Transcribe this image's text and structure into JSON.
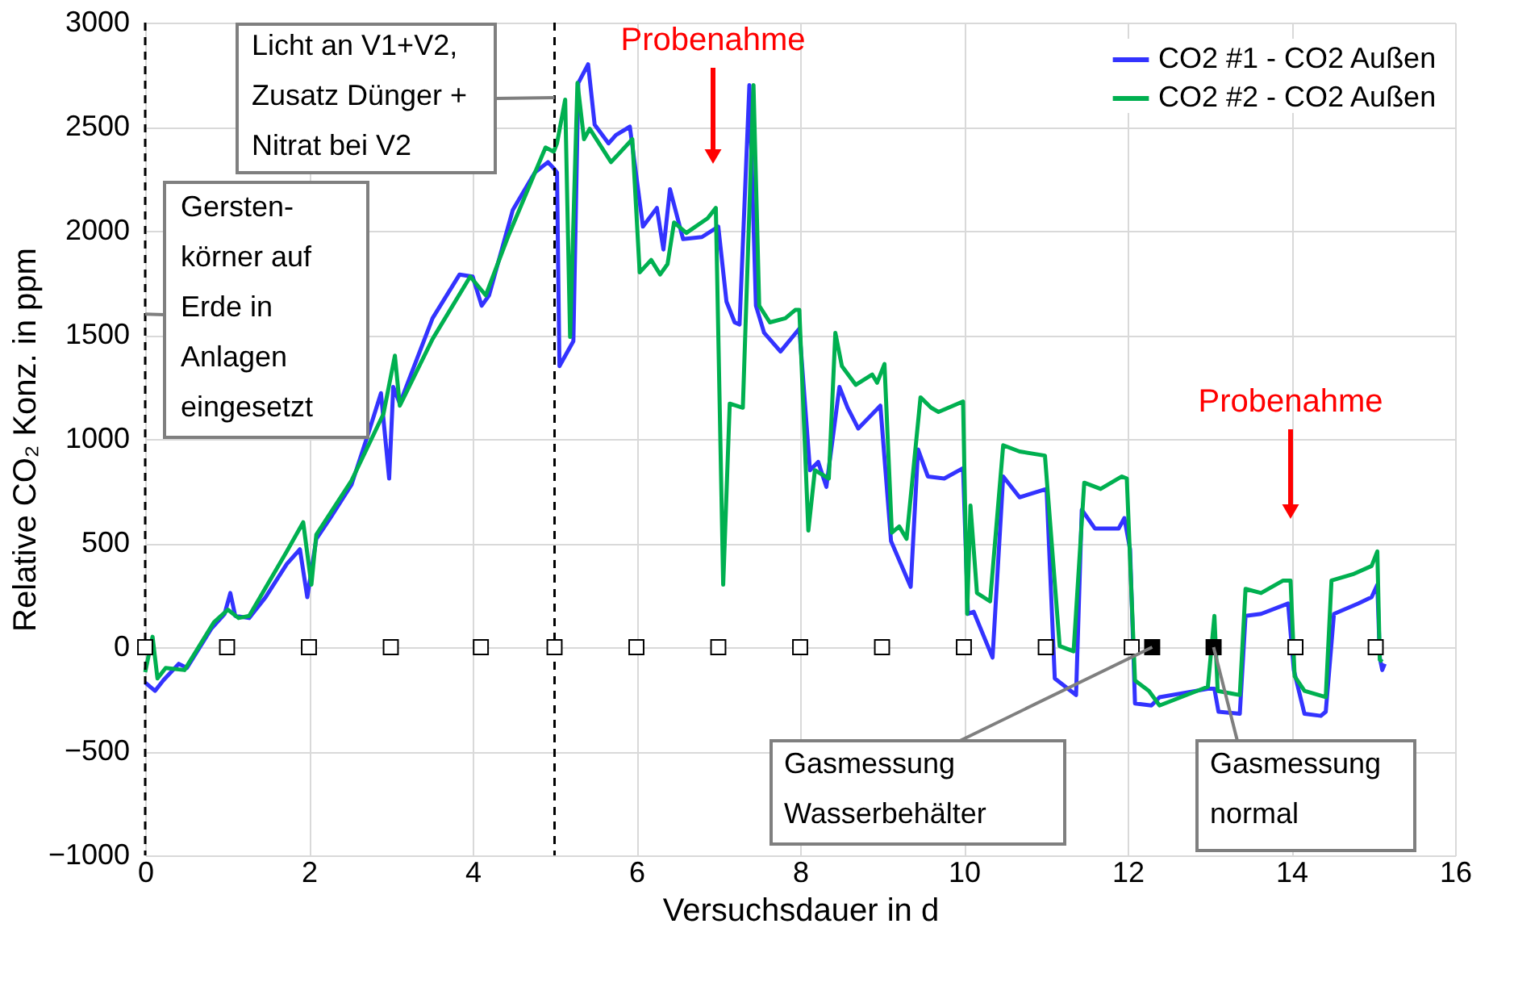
{
  "chart_data": {
    "type": "line",
    "xlabel": "Versuchsdauer in d",
    "ylabel": "Relative CO₂ Konz. in ppm",
    "xlim": [
      0,
      16
    ],
    "xticks": [
      0,
      2,
      4,
      6,
      8,
      10,
      12,
      14,
      16
    ],
    "ylim": [
      -1000,
      3000
    ],
    "yticks": [
      -1000,
      -500,
      0,
      500,
      1000,
      1500,
      2000,
      2500,
      3000
    ],
    "grid": true,
    "legend": "top right",
    "line_style": "solid",
    "series": [
      {
        "name": "CO2 #1 - CO2 Außen",
        "color": "#3333ff",
        "x": [
          0,
          0.12,
          0.22,
          0.41,
          0.51,
          0.81,
          0.97,
          1.04,
          1.1,
          1.27,
          1.47,
          1.73,
          1.89,
          1.98,
          2.09,
          2.26,
          2.52,
          2.72,
          2.88,
          2.98,
          3.03,
          3.11,
          3.51,
          3.84,
          4.0,
          4.11,
          4.2,
          4.49,
          4.76,
          4.92,
          4.99,
          5.03,
          5.06,
          5.23,
          5.29,
          5.41,
          5.49,
          5.66,
          5.75,
          5.92,
          6.08,
          6.25,
          6.33,
          6.41,
          6.57,
          6.8,
          7.0,
          7.1,
          7.2,
          7.26,
          7.38,
          7.46,
          7.56,
          7.76,
          7.99,
          8.12,
          8.22,
          8.32,
          8.48,
          8.58,
          8.71,
          8.98,
          9.11,
          9.35,
          9.44,
          9.56,
          9.76,
          9.99,
          10.05,
          10.12,
          10.35,
          10.48,
          10.68,
          11.01,
          11.11,
          11.37,
          11.44,
          11.6,
          11.89,
          11.96,
          12.03,
          12.09,
          12.29,
          12.39,
          12.98,
          13.06,
          13.11,
          13.37,
          13.44,
          13.63,
          13.96,
          14.03,
          14.16,
          14.36,
          14.42,
          14.52,
          14.82,
          14.98,
          15.05,
          15.08,
          15.11,
          15.14
        ],
        "values": [
          -170,
          -210,
          -160,
          -80,
          -100,
          90,
          160,
          260,
          150,
          140,
          240,
          400,
          470,
          240,
          520,
          620,
          780,
          1020,
          1220,
          810,
          1250,
          1170,
          1580,
          1790,
          1780,
          1640,
          1690,
          2100,
          2280,
          2330,
          2300,
          2280,
          1350,
          1470,
          2710,
          2800,
          2510,
          2420,
          2460,
          2500,
          2020,
          2110,
          1910,
          2200,
          1960,
          1970,
          2020,
          1660,
          1560,
          1550,
          2700,
          1640,
          1510,
          1420,
          1530,
          850,
          890,
          770,
          1250,
          1150,
          1050,
          1160,
          510,
          290,
          950,
          820,
          810,
          860,
          160,
          170,
          -50,
          820,
          720,
          760,
          -150,
          -230,
          660,
          570,
          570,
          620,
          470,
          -270,
          -280,
          -240,
          -200,
          -200,
          -310,
          -320,
          150,
          160,
          210,
          -110,
          -320,
          -330,
          -310,
          160,
          210,
          240,
          300,
          -50,
          -110,
          -80
        ]
      },
      {
        "name": "CO2 #2 - CO2 Außen",
        "color": "#00b050",
        "x": [
          0,
          0.09,
          0.15,
          0.25,
          0.48,
          0.84,
          1.01,
          1.14,
          1.27,
          1.73,
          1.93,
          2.03,
          2.09,
          2.52,
          2.91,
          3.05,
          3.11,
          3.51,
          3.97,
          4.16,
          4.43,
          4.89,
          4.99,
          5.03,
          5.13,
          5.19,
          5.28,
          5.36,
          5.43,
          5.69,
          5.95,
          6.04,
          6.18,
          6.29,
          6.38,
          6.46,
          6.61,
          6.87,
          6.97,
          7.06,
          7.14,
          7.3,
          7.43,
          7.5,
          7.63,
          7.82,
          7.94,
          7.99,
          8.1,
          8.18,
          8.35,
          8.43,
          8.51,
          8.68,
          8.88,
          8.94,
          9.03,
          9.12,
          9.21,
          9.3,
          9.47,
          9.6,
          9.69,
          9.99,
          10.04,
          10.08,
          10.16,
          10.32,
          10.48,
          10.68,
          10.99,
          11.17,
          11.34,
          11.47,
          11.67,
          11.93,
          11.99,
          12.09,
          12.26,
          12.39,
          12.98,
          13.06,
          13.1,
          13.37,
          13.44,
          13.63,
          13.9,
          13.99,
          14.04,
          14.16,
          14.42,
          14.49,
          14.75,
          14.98,
          15.05,
          15.08,
          15.11
        ],
        "values": [
          -120,
          50,
          -150,
          -100,
          -110,
          120,
          180,
          140,
          150,
          460,
          600,
          300,
          540,
          800,
          1120,
          1400,
          1160,
          1480,
          1780,
          1690,
          1970,
          2400,
          2380,
          2420,
          2630,
          1490,
          2710,
          2440,
          2490,
          2330,
          2440,
          1800,
          1860,
          1790,
          1840,
          2040,
          1990,
          2060,
          2110,
          300,
          1170,
          1150,
          2700,
          1640,
          1560,
          1580,
          1620,
          1620,
          560,
          850,
          810,
          1510,
          1350,
          1260,
          1310,
          1270,
          1360,
          550,
          580,
          520,
          1200,
          1150,
          1130,
          1180,
          160,
          680,
          260,
          220,
          970,
          940,
          920,
          5,
          -20,
          790,
          760,
          820,
          810,
          -160,
          -210,
          -280,
          -190,
          150,
          -210,
          -230,
          280,
          260,
          320,
          320,
          -140,
          -210,
          -240,
          320,
          350,
          390,
          460,
          -60,
          -70
        ]
      },
      {
        "type": "scatter",
        "marker": "square",
        "color": "#ffffff",
        "x": [
          0,
          1,
          2,
          3,
          4.1,
          5,
          6,
          7,
          8,
          9,
          10,
          11,
          12.05,
          14.05,
          15.03
        ],
        "values": [
          0,
          0,
          0,
          0,
          0,
          0,
          0,
          0,
          0,
          0,
          0,
          0,
          0,
          0,
          0
        ]
      },
      {
        "type": "scatter",
        "marker": "square",
        "color": "#000000",
        "x": [
          12.3,
          13.05
        ],
        "values": [
          0,
          0
        ]
      }
    ],
    "ref_lines": [
      {
        "axis": "x",
        "value": 0,
        "color": "#000000",
        "line_style": "dashed"
      },
      {
        "axis": "x",
        "value": 5,
        "color": "#000000",
        "line_style": "dashed"
      }
    ],
    "annotations": [
      {
        "text": "Gersten-\nkörner auf\nErde in\nAnlagen\neingesetzt",
        "x": 0,
        "y": 1600
      },
      {
        "text": "Licht an V1+V2,\nZusatz Dünger +\nNitrat bei V2",
        "x": 5,
        "y": 2640
      },
      "Probenahme",
      {
        "text": "Gasmessung\nWasserbehälter",
        "x": 12.3,
        "y": 0
      },
      {
        "text": "Gasmessung\nnormal",
        "x": 13.05,
        "y": 0
      },
      "Probenahme"
    ]
  }
}
